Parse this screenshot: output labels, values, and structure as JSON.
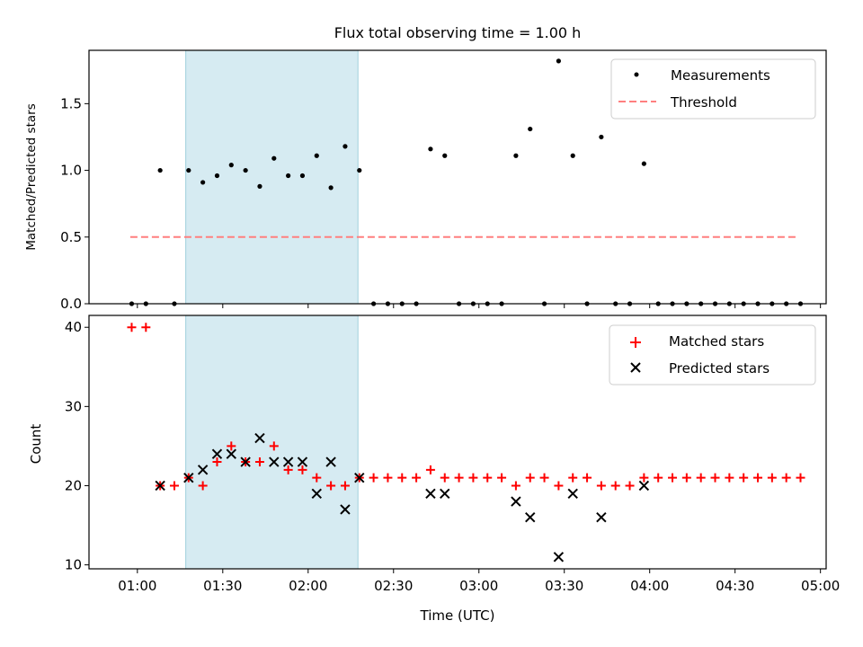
{
  "chart_data": [
    {
      "type": "scatter",
      "title": "Flux total observing time = 1.00 h",
      "ylabel": "Matched/Predicted stars",
      "xlabel": "",
      "ylim": [
        0,
        1.9
      ],
      "yticks": [
        0.0,
        0.5,
        1.0,
        1.5
      ],
      "ytick_labels": [
        "0.0",
        "0.5",
        "1.0",
        "1.5"
      ],
      "shaded_span_minutes": [
        77,
        137.5
      ],
      "series": [
        {
          "name": "Measurements",
          "marker": "dot",
          "color": "#000000",
          "x_minutes": [
            58,
            63,
            68,
            73,
            78,
            83,
            88,
            93,
            98,
            103,
            108,
            113,
            118,
            123,
            128,
            133,
            138,
            143,
            148,
            153,
            158,
            163,
            168,
            173,
            178,
            183,
            188,
            193,
            198,
            203,
            208,
            213,
            218,
            223,
            228,
            233,
            238,
            243,
            248,
            253,
            258,
            263,
            268,
            273,
            278,
            283,
            288,
            293
          ],
          "values": [
            0,
            0,
            1.0,
            0,
            1.0,
            0.91,
            0.96,
            1.04,
            1.0,
            0.88,
            1.09,
            0.96,
            0.96,
            1.11,
            0.87,
            1.18,
            1.0,
            0,
            0,
            0,
            0,
            1.16,
            1.11,
            0,
            0,
            0,
            0,
            1.11,
            1.31,
            0,
            1.82,
            1.11,
            0,
            1.25,
            0,
            0,
            1.05,
            0,
            0,
            0,
            0,
            0,
            0,
            0,
            0,
            0,
            0,
            0
          ]
        },
        {
          "name": "Threshold",
          "type": "line",
          "style": "dashed",
          "color": "#ff7f7f",
          "x_minutes": [
            57.5,
            292.5
          ],
          "values": [
            0.5,
            0.5
          ]
        }
      ],
      "legend": [
        "Measurements",
        "Threshold"
      ],
      "legend_placement": "top-right"
    },
    {
      "type": "scatter",
      "title": "",
      "ylabel": "Count",
      "xlabel": "Time (UTC)",
      "ylim": [
        9.5,
        41.5
      ],
      "yticks": [
        10,
        20,
        30,
        40
      ],
      "ytick_labels": [
        "10",
        "20",
        "30",
        "40"
      ],
      "xlim_minutes": [
        43,
        302
      ],
      "xticks_minutes": [
        60,
        90,
        120,
        150,
        180,
        210,
        240,
        270,
        300
      ],
      "xtick_labels": [
        "01:00",
        "01:30",
        "02:00",
        "02:30",
        "03:00",
        "03:30",
        "04:00",
        "04:30",
        "05:00"
      ],
      "shaded_span_minutes": [
        77,
        137.5
      ],
      "series": [
        {
          "name": "Matched stars",
          "marker": "plus",
          "color": "#ff0000",
          "x_minutes": [
            58,
            63,
            68,
            73,
            78,
            83,
            88,
            93,
            98,
            103,
            108,
            113,
            118,
            123,
            128,
            133,
            138,
            143,
            148,
            153,
            158,
            163,
            168,
            173,
            178,
            183,
            188,
            193,
            198,
            203,
            208,
            213,
            218,
            223,
            228,
            233,
            238,
            243,
            248,
            253,
            258,
            263,
            268,
            273,
            278,
            283,
            288,
            293
          ],
          "values": [
            40,
            40,
            20,
            20,
            21,
            20,
            23,
            25,
            23,
            23,
            25,
            22,
            22,
            21,
            20,
            20,
            21,
            21,
            21,
            21,
            21,
            22,
            21,
            21,
            21,
            21,
            21,
            20,
            21,
            21,
            20,
            21,
            21,
            20,
            20,
            20,
            21,
            21,
            21,
            21,
            21,
            21,
            21,
            21,
            21,
            21,
            21,
            21
          ]
        },
        {
          "name": "Predicted stars",
          "marker": "x",
          "color": "#000000",
          "x_minutes": [
            68,
            78,
            83,
            88,
            93,
            98,
            103,
            108,
            113,
            118,
            123,
            128,
            133,
            138,
            163,
            168,
            193,
            198,
            208,
            213,
            223,
            238
          ],
          "values": [
            20,
            21,
            22,
            24,
            24,
            23,
            26,
            23,
            23,
            23,
            19,
            23,
            17,
            21,
            19,
            19,
            18,
            16,
            11,
            19,
            16,
            20
          ]
        }
      ],
      "legend": [
        "Matched stars",
        "Predicted stars"
      ],
      "legend_placement": "top-right"
    }
  ]
}
